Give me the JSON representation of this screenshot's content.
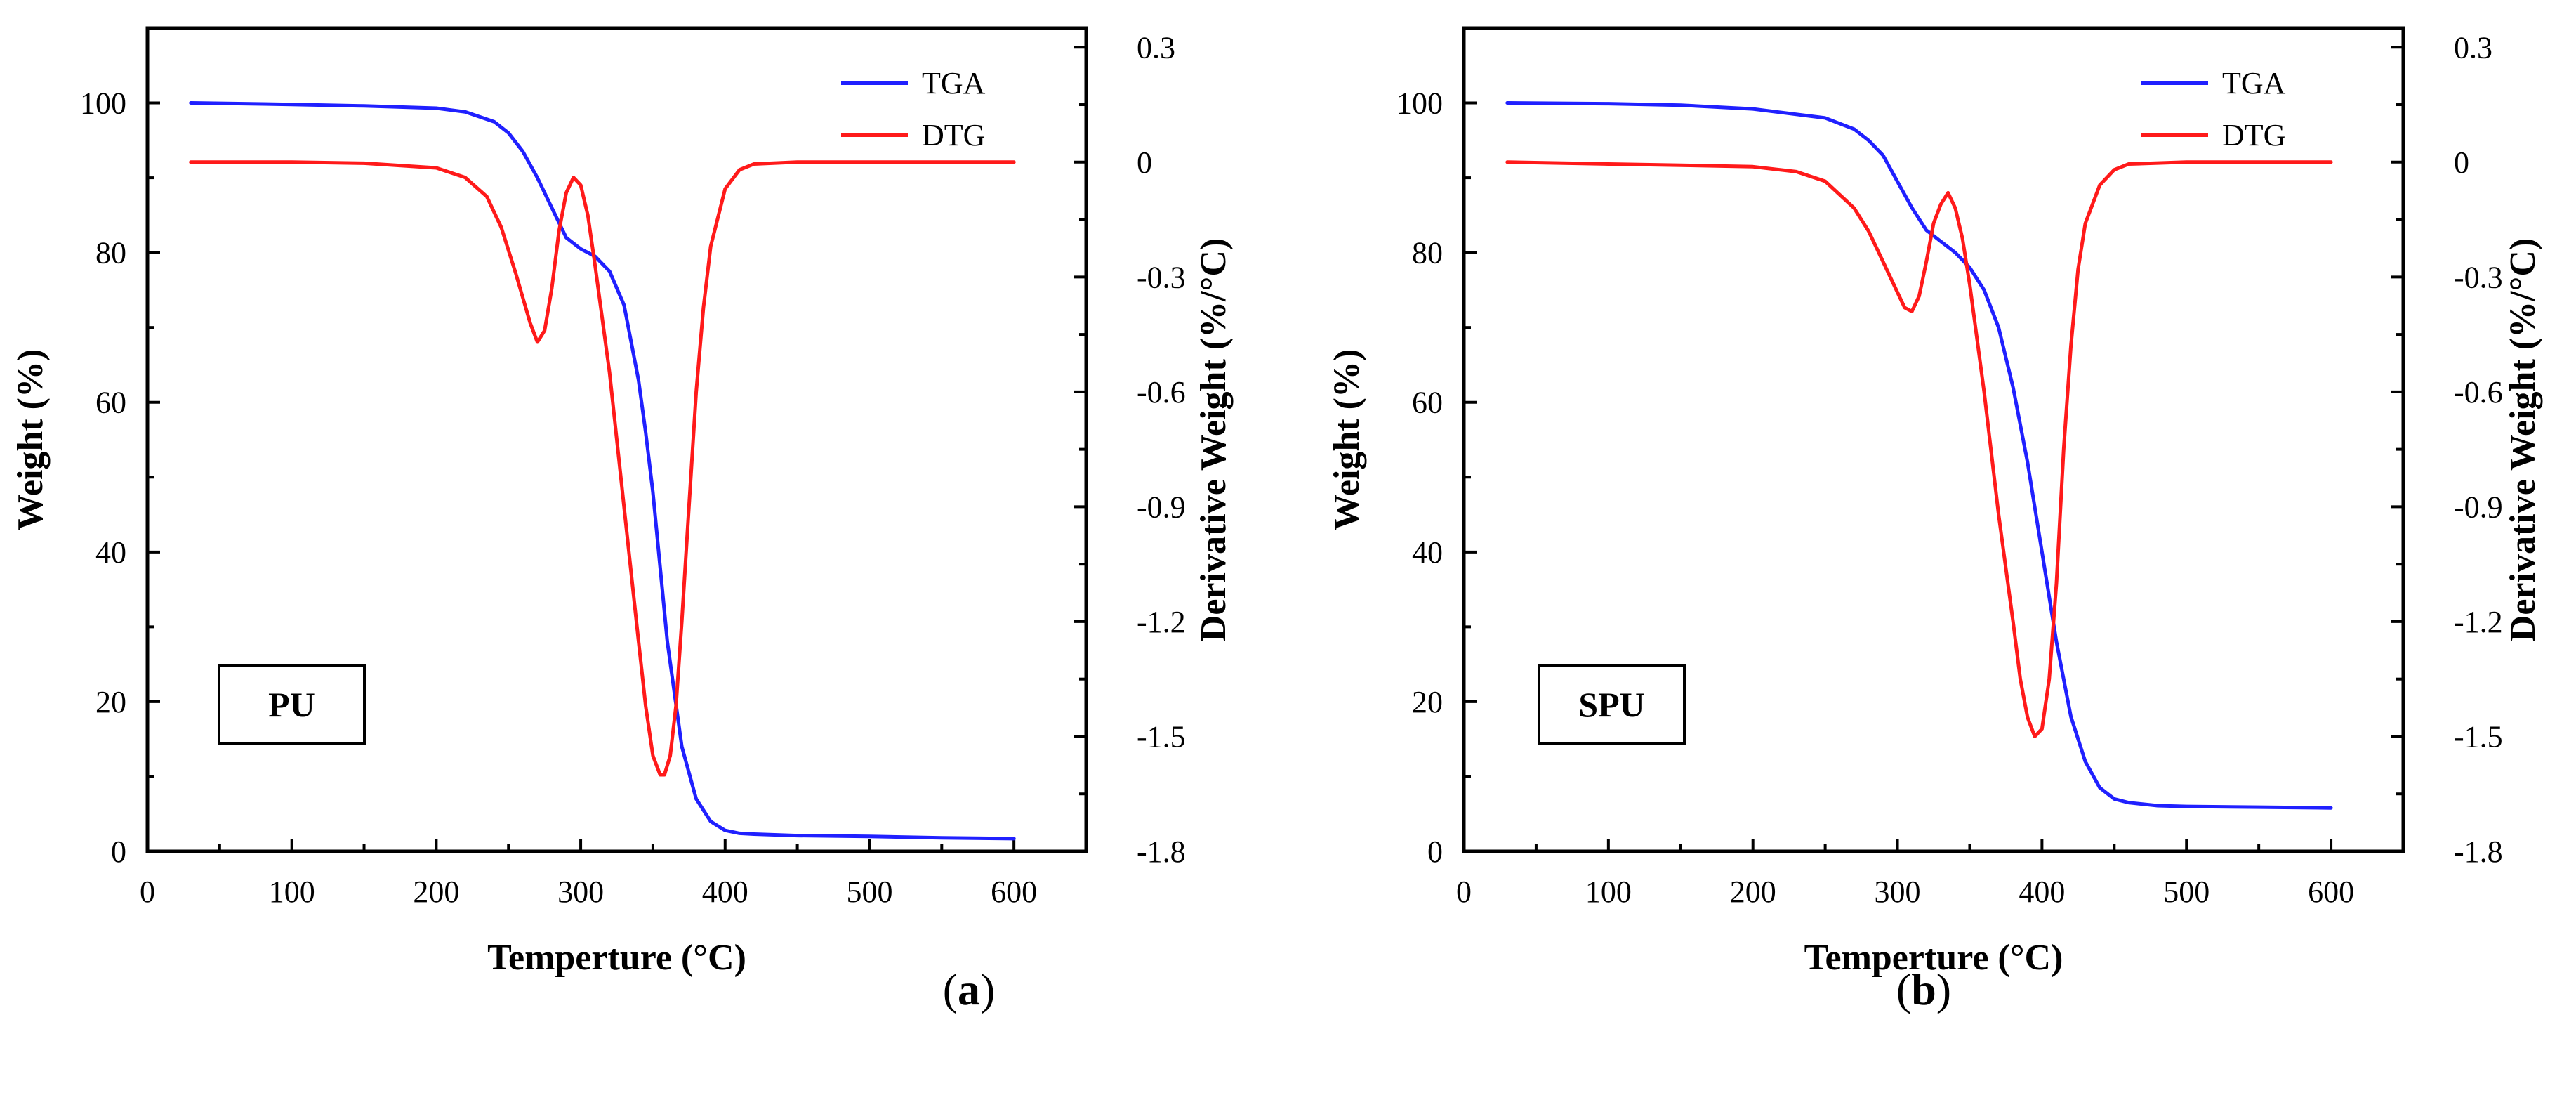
{
  "figure": {
    "panel_labels": [
      "(a)",
      "(b)"
    ]
  },
  "chart_data": [
    {
      "type": "line",
      "panel_label": "(a)",
      "sample_label": "PU",
      "xlabel": "Temperture (°C)",
      "ylabel_left": "Weight (%)",
      "ylabel_right": "Derivative Weight (%/°C)",
      "xlim": [
        0,
        650
      ],
      "ylim_left": [
        0,
        110
      ],
      "ylim_right": [
        -1.8,
        0.35
      ],
      "xticks": [
        0,
        100,
        200,
        300,
        400,
        500,
        600
      ],
      "yticks_left": [
        0,
        20,
        40,
        60,
        80,
        100
      ],
      "yticks_right": [
        0.3,
        0,
        -0.3,
        -0.6,
        -0.9,
        -1.2,
        -1.5,
        -1.8
      ],
      "yticks_right_labels": [
        "0.3",
        "0",
        "-0.3",
        "-0.6",
        "-0.9",
        "-1.2",
        "-1.5",
        "-1.8"
      ],
      "legend": [
        "TGA",
        "DTG"
      ],
      "legend_position": "top-right",
      "colors": {
        "TGA": "#2020ff",
        "DTG": "#ff1a1a"
      },
      "series": [
        {
          "name": "TGA",
          "axis": "left",
          "x": [
            30,
            100,
            150,
            200,
            220,
            240,
            250,
            260,
            270,
            280,
            290,
            300,
            310,
            320,
            330,
            340,
            345,
            350,
            355,
            360,
            365,
            370,
            380,
            390,
            400,
            410,
            420,
            450,
            500,
            550,
            600
          ],
          "y": [
            100,
            99.8,
            99.6,
            99.3,
            98.8,
            97.5,
            96,
            93.5,
            90,
            86,
            82,
            80.5,
            79.5,
            77.5,
            73,
            63,
            56,
            48,
            38,
            28,
            21,
            14,
            7,
            4,
            2.8,
            2.4,
            2.3,
            2.1,
            2.0,
            1.8,
            1.7
          ]
        },
        {
          "name": "DTG",
          "axis": "right",
          "x": [
            30,
            100,
            150,
            200,
            220,
            235,
            245,
            255,
            265,
            270,
            275,
            280,
            285,
            290,
            295,
            300,
            305,
            310,
            320,
            330,
            340,
            345,
            350,
            355,
            358,
            362,
            366,
            370,
            375,
            380,
            385,
            390,
            400,
            410,
            420,
            450,
            500,
            600
          ],
          "y": [
            0,
            0,
            -0.003,
            -0.015,
            -0.04,
            -0.09,
            -0.17,
            -0.29,
            -0.42,
            -0.47,
            -0.44,
            -0.33,
            -0.18,
            -0.08,
            -0.04,
            -0.06,
            -0.14,
            -0.27,
            -0.55,
            -0.9,
            -1.25,
            -1.42,
            -1.55,
            -1.6,
            -1.6,
            -1.55,
            -1.42,
            -1.2,
            -0.9,
            -0.6,
            -0.38,
            -0.22,
            -0.07,
            -0.02,
            -0.005,
            0,
            0,
            0
          ]
        }
      ]
    },
    {
      "type": "line",
      "panel_label": "(b)",
      "sample_label": "SPU",
      "xlabel": "Temperture  (°C)",
      "ylabel_left": "Weight  (%)",
      "ylabel_right": "Derivative Weight  (%/°C)",
      "xlim": [
        0,
        650
      ],
      "ylim_left": [
        0,
        110
      ],
      "ylim_right": [
        -1.8,
        0.35
      ],
      "xticks": [
        0,
        100,
        200,
        300,
        400,
        500,
        600
      ],
      "yticks_left": [
        0,
        20,
        40,
        60,
        80,
        100
      ],
      "yticks_right": [
        0.3,
        0,
        -0.3,
        -0.6,
        -0.9,
        -1.2,
        -1.5,
        -1.8
      ],
      "yticks_right_labels": [
        "0.3",
        "0",
        "-0.3",
        "-0.6",
        "-0.9",
        "-1.2",
        "-1.5",
        "-1.8"
      ],
      "legend": [
        "TGA",
        "DTG"
      ],
      "legend_position": "top-right",
      "colors": {
        "TGA": "#2020ff",
        "DTG": "#ff1a1a"
      },
      "series": [
        {
          "name": "TGA",
          "axis": "left",
          "x": [
            30,
            100,
            150,
            200,
            250,
            270,
            280,
            290,
            300,
            310,
            320,
            330,
            340,
            350,
            360,
            370,
            380,
            390,
            400,
            410,
            420,
            430,
            440,
            450,
            460,
            480,
            500,
            550,
            600
          ],
          "y": [
            100,
            99.9,
            99.7,
            99.2,
            98,
            96.5,
            95,
            93,
            89.5,
            86,
            83,
            81.5,
            80,
            78,
            75,
            70,
            62,
            52,
            40,
            28,
            18,
            12,
            8.5,
            7,
            6.5,
            6.1,
            6,
            5.9,
            5.8
          ]
        },
        {
          "name": "DTG",
          "axis": "right",
          "x": [
            30,
            100,
            150,
            200,
            230,
            250,
            270,
            280,
            290,
            300,
            305,
            310,
            315,
            320,
            325,
            330,
            335,
            340,
            345,
            350,
            360,
            370,
            380,
            385,
            390,
            395,
            400,
            405,
            410,
            415,
            420,
            425,
            430,
            440,
            450,
            460,
            500,
            600
          ],
          "y": [
            0,
            -0.005,
            -0.008,
            -0.012,
            -0.025,
            -0.05,
            -0.12,
            -0.18,
            -0.26,
            -0.34,
            -0.38,
            -0.39,
            -0.35,
            -0.26,
            -0.16,
            -0.11,
            -0.08,
            -0.12,
            -0.2,
            -0.32,
            -0.6,
            -0.92,
            -1.2,
            -1.35,
            -1.45,
            -1.5,
            -1.48,
            -1.35,
            -1.1,
            -0.75,
            -0.48,
            -0.28,
            -0.16,
            -0.06,
            -0.02,
            -0.005,
            0,
            0
          ]
        }
      ]
    }
  ]
}
